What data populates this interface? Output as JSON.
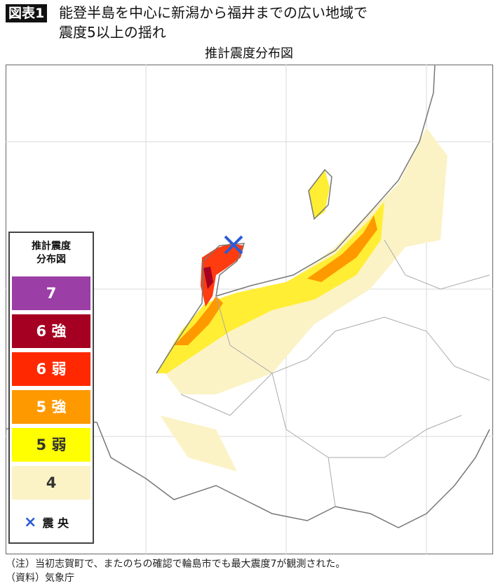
{
  "header": {
    "badge": "図表1",
    "title_line1": "能登半島を中心に新潟から福井までの広い地域で",
    "title_line2": "震度5以上の揺れ",
    "map_title": "推計震度分布図"
  },
  "legend": {
    "title_line1": "推計震度",
    "title_line2": "分布図",
    "items": [
      {
        "label": "7",
        "color": "#9b3fa6",
        "text_color": "#ffffff"
      },
      {
        "label": "6 強",
        "color": "#a50021",
        "text_color": "#ffffff"
      },
      {
        "label": "6 弱",
        "color": "#ff2800",
        "text_color": "#ffffff"
      },
      {
        "label": "5 強",
        "color": "#ff9900",
        "text_color": "#ffffff"
      },
      {
        "label": "5 弱",
        "color": "#ffff00",
        "text_color": "#333333"
      },
      {
        "label": "4",
        "color": "#fbf3c6",
        "text_color": "#333333"
      }
    ],
    "epicenter_symbol": "×",
    "epicenter_label": "震 央",
    "epicenter_color": "#2a5bd7"
  },
  "footer": {
    "note": "（注）当初志賀町で、またのちの確認で輪島市でも最大震度7が観測された。",
    "source": "（資料）気象庁"
  }
}
